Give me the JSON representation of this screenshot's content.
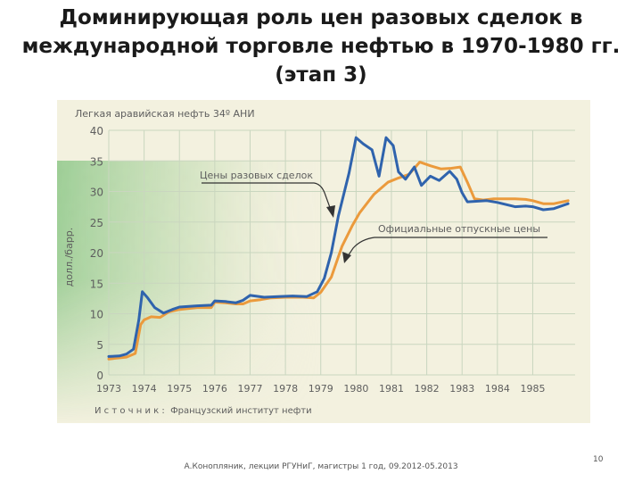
{
  "slide": {
    "title_line1": "Доминирующая роль цен разовых сделок в",
    "title_line2": "международной торговле нефтью в 1970-1980 гг.",
    "title_line3": "(этап 3)",
    "footer": "А.Конопляник, лекции РГУНиГ, магистры 1 год, 09.2012-05.2013",
    "page_number": "10"
  },
  "colors": {
    "panel": "#f3f1df",
    "grid": "#c9d6bf",
    "spot": "#2f63ad",
    "official": "#eb9a3c",
    "text": "#5e5e5e"
  },
  "chart_data": {
    "type": "line",
    "title": "Легкая аравийская нефть 34º АНИ",
    "ylabel": "долл./барр.",
    "source": "И с т о ч н и к :  Французский институт нефти",
    "ylim": [
      0,
      40
    ],
    "yticks": [
      0,
      5,
      10,
      15,
      20,
      25,
      30,
      35,
      40
    ],
    "xlim": [
      1973,
      1986.2
    ],
    "xticks": [
      "1973",
      "1974",
      "1975",
      "1976",
      "1977",
      "1978",
      "1979",
      "1980",
      "1981",
      "1982",
      "1983",
      "1984",
      "1985"
    ],
    "series": [
      {
        "name": "Цены разовых сделок",
        "color": "#2f63ad",
        "points": [
          [
            1973.0,
            3.0
          ],
          [
            1973.3,
            3.1
          ],
          [
            1973.5,
            3.4
          ],
          [
            1973.7,
            4.2
          ],
          [
            1973.85,
            9.0
          ],
          [
            1973.95,
            13.6
          ],
          [
            1974.1,
            12.6
          ],
          [
            1974.3,
            11.0
          ],
          [
            1974.55,
            10.1
          ],
          [
            1974.8,
            10.7
          ],
          [
            1975.0,
            11.1
          ],
          [
            1975.5,
            11.3
          ],
          [
            1975.9,
            11.4
          ],
          [
            1976.0,
            12.1
          ],
          [
            1976.3,
            12.0
          ],
          [
            1976.6,
            11.8
          ],
          [
            1976.8,
            12.2
          ],
          [
            1977.0,
            13.0
          ],
          [
            1977.4,
            12.7
          ],
          [
            1977.8,
            12.8
          ],
          [
            1978.2,
            12.9
          ],
          [
            1978.6,
            12.8
          ],
          [
            1978.9,
            13.6
          ],
          [
            1979.1,
            15.8
          ],
          [
            1979.3,
            20.0
          ],
          [
            1979.5,
            26.0
          ],
          [
            1979.8,
            33.0
          ],
          [
            1980.0,
            38.8
          ],
          [
            1980.2,
            37.8
          ],
          [
            1980.45,
            36.8
          ],
          [
            1980.65,
            32.5
          ],
          [
            1980.85,
            38.8
          ],
          [
            1981.05,
            37.5
          ],
          [
            1981.2,
            33.2
          ],
          [
            1981.4,
            32.0
          ],
          [
            1981.65,
            34.0
          ],
          [
            1981.85,
            31.0
          ],
          [
            1982.1,
            32.5
          ],
          [
            1982.35,
            31.8
          ],
          [
            1982.65,
            33.3
          ],
          [
            1982.85,
            32.0
          ],
          [
            1983.0,
            29.8
          ],
          [
            1983.15,
            28.3
          ],
          [
            1983.4,
            28.4
          ],
          [
            1983.7,
            28.5
          ],
          [
            1984.0,
            28.2
          ],
          [
            1984.5,
            27.5
          ],
          [
            1984.8,
            27.6
          ],
          [
            1985.0,
            27.5
          ],
          [
            1985.3,
            27.0
          ],
          [
            1985.6,
            27.2
          ],
          [
            1986.0,
            28.0
          ]
        ]
      },
      {
        "name": "Официальные отпускные цены",
        "color": "#eb9a3c",
        "points": [
          [
            1973.0,
            2.6
          ],
          [
            1973.5,
            2.9
          ],
          [
            1973.75,
            3.5
          ],
          [
            1973.9,
            8.2
          ],
          [
            1974.0,
            9.0
          ],
          [
            1974.2,
            9.5
          ],
          [
            1974.45,
            9.4
          ],
          [
            1974.7,
            10.3
          ],
          [
            1975.0,
            10.7
          ],
          [
            1975.5,
            11.0
          ],
          [
            1975.9,
            11.0
          ],
          [
            1976.0,
            11.9
          ],
          [
            1976.3,
            11.8
          ],
          [
            1976.6,
            11.6
          ],
          [
            1976.8,
            11.6
          ],
          [
            1977.0,
            12.1
          ],
          [
            1977.3,
            12.3
          ],
          [
            1977.6,
            12.6
          ],
          [
            1978.0,
            12.7
          ],
          [
            1978.5,
            12.7
          ],
          [
            1978.8,
            12.6
          ],
          [
            1979.0,
            13.5
          ],
          [
            1979.3,
            16.0
          ],
          [
            1979.6,
            21.0
          ],
          [
            1979.9,
            24.5
          ],
          [
            1980.1,
            26.5
          ],
          [
            1980.5,
            29.5
          ],
          [
            1980.9,
            31.5
          ],
          [
            1981.2,
            32.2
          ],
          [
            1981.5,
            32.8
          ],
          [
            1981.8,
            34.8
          ],
          [
            1982.1,
            34.2
          ],
          [
            1982.4,
            33.7
          ],
          [
            1982.7,
            33.8
          ],
          [
            1982.95,
            34.0
          ],
          [
            1983.15,
            31.5
          ],
          [
            1983.35,
            28.8
          ],
          [
            1983.6,
            28.6
          ],
          [
            1983.9,
            28.8
          ],
          [
            1984.5,
            28.8
          ],
          [
            1984.8,
            28.7
          ],
          [
            1985.0,
            28.5
          ],
          [
            1985.3,
            28.0
          ],
          [
            1985.6,
            28.0
          ],
          [
            1986.0,
            28.5
          ]
        ]
      }
    ],
    "annotations": [
      {
        "text": "Цены разовых сделок",
        "series": 0
      },
      {
        "text": "Официальные отпускные цены",
        "series": 1
      }
    ]
  }
}
